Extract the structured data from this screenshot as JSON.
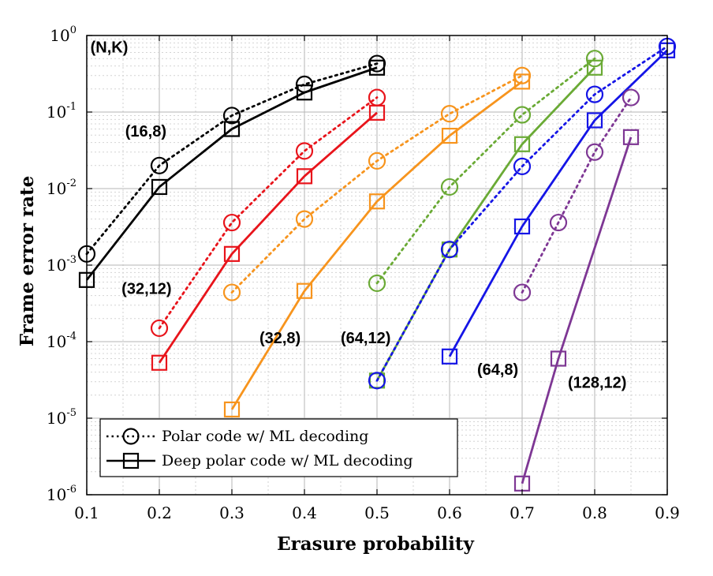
{
  "chart_data": {
    "type": "line",
    "xlabel": "Erasure probability",
    "ylabel": "Frame error rate",
    "xlim": [
      0.1,
      0.9
    ],
    "ylim": [
      1e-06,
      1
    ],
    "yscale": "log",
    "grid": true,
    "x_ticks": [
      "0.1",
      "0.2",
      "0.3",
      "0.4",
      "0.5",
      "0.6",
      "0.7",
      "0.8",
      "0.9"
    ],
    "y_ticks": [
      {
        "base": "10",
        "exp": "0",
        "value": 1
      },
      {
        "base": "10",
        "exp": "-1",
        "value": 0.1
      },
      {
        "base": "10",
        "exp": "-2",
        "value": 0.01
      },
      {
        "base": "10",
        "exp": "-3",
        "value": 0.001
      },
      {
        "base": "10",
        "exp": "-4",
        "value": 0.0001
      },
      {
        "base": "10",
        "exp": "-5",
        "value": 1e-05
      },
      {
        "base": "10",
        "exp": "-6",
        "value": 1e-06
      }
    ],
    "legend": {
      "placement": "bottom-left",
      "entries": [
        {
          "label": "Polar code w/ ML decoding",
          "marker": "circle",
          "style": "dotted"
        },
        {
          "label": "Deep polar code w/ ML decoding",
          "marker": "square",
          "style": "solid"
        }
      ]
    },
    "annotations": [
      {
        "text": "(N,K)",
        "x": 0.105,
        "y": 0.6
      },
      {
        "text": "(16,8)",
        "x": 0.153,
        "y": 0.048
      },
      {
        "text": "(32,12)",
        "x": 0.148,
        "y": 0.00042
      },
      {
        "text": "(32,8)",
        "x": 0.338,
        "y": 9.5e-05
      },
      {
        "text": "(64,12)",
        "x": 0.45,
        "y": 9.5e-05
      },
      {
        "text": "(64,8)",
        "x": 0.638,
        "y": 3.7e-05
      },
      {
        "text": "(128,12)",
        "x": 0.763,
        "y": 2.5e-05
      }
    ],
    "series": [
      {
        "code": "(16,8)",
        "kind": "Polar",
        "color": "#000000",
        "x": [
          0.1,
          0.2,
          0.3,
          0.4,
          0.5
        ],
        "y": [
          0.0014,
          0.02,
          0.09,
          0.23,
          0.43
        ]
      },
      {
        "code": "(16,8)",
        "kind": "Deep polar",
        "color": "#000000",
        "x": [
          0.1,
          0.2,
          0.3,
          0.4,
          0.5
        ],
        "y": [
          0.00064,
          0.0105,
          0.06,
          0.18,
          0.38
        ]
      },
      {
        "code": "(32,12)",
        "kind": "Polar",
        "color": "#e8141b",
        "x": [
          0.2,
          0.3,
          0.4,
          0.5
        ],
        "y": [
          0.00015,
          0.0036,
          0.031,
          0.155
        ]
      },
      {
        "code": "(32,12)",
        "kind": "Deep polar",
        "color": "#e8141b",
        "x": [
          0.2,
          0.3,
          0.4,
          0.5
        ],
        "y": [
          5.3e-05,
          0.0014,
          0.0145,
          0.098
        ]
      },
      {
        "code": "(32,8)",
        "kind": "Polar",
        "color": "#f7941d",
        "x": [
          0.3,
          0.4,
          0.5,
          0.6,
          0.7
        ],
        "y": [
          0.00044,
          0.004,
          0.023,
          0.095,
          0.3
        ]
      },
      {
        "code": "(32,8)",
        "kind": "Deep polar",
        "color": "#f7941d",
        "x": [
          0.3,
          0.4,
          0.5,
          0.6,
          0.7
        ],
        "y": [
          1.3e-05,
          0.00046,
          0.0068,
          0.049,
          0.25
        ]
      },
      {
        "code": "(64,12)",
        "kind": "Polar",
        "color": "#6aaa35",
        "x": [
          0.5,
          0.6,
          0.7,
          0.8
        ],
        "y": [
          0.00058,
          0.0105,
          0.092,
          0.5
        ]
      },
      {
        "code": "(64,12)",
        "kind": "Deep polar",
        "color": "#6aaa35",
        "x": [
          0.5,
          0.6,
          0.7,
          0.8
        ],
        "y": [
          3.1e-05,
          0.0016,
          0.038,
          0.38
        ]
      },
      {
        "code": "(64,8)",
        "kind": "Polar",
        "color": "#1515e6",
        "x": [
          0.5,
          0.6,
          0.7,
          0.8,
          0.9
        ],
        "y": [
          3.1e-05,
          0.0016,
          0.0195,
          0.17,
          0.72
        ]
      },
      {
        "code": "(64,8)",
        "kind": "Deep polar",
        "color": "#1515e6",
        "x": [
          0.6,
          0.7,
          0.8,
          0.9
        ],
        "y": [
          6.4e-05,
          0.0032,
          0.078,
          0.64
        ]
      },
      {
        "code": "(128,12)",
        "kind": "Polar",
        "color": "#7e3794",
        "x": [
          0.7,
          0.75,
          0.8,
          0.85
        ],
        "y": [
          0.00044,
          0.0036,
          0.03,
          0.155
        ]
      },
      {
        "code": "(128,12)",
        "kind": "Deep polar",
        "color": "#7e3794",
        "x": [
          0.7,
          0.75,
          0.85
        ],
        "y": [
          1.4e-06,
          6e-05,
          0.047
        ]
      }
    ]
  }
}
